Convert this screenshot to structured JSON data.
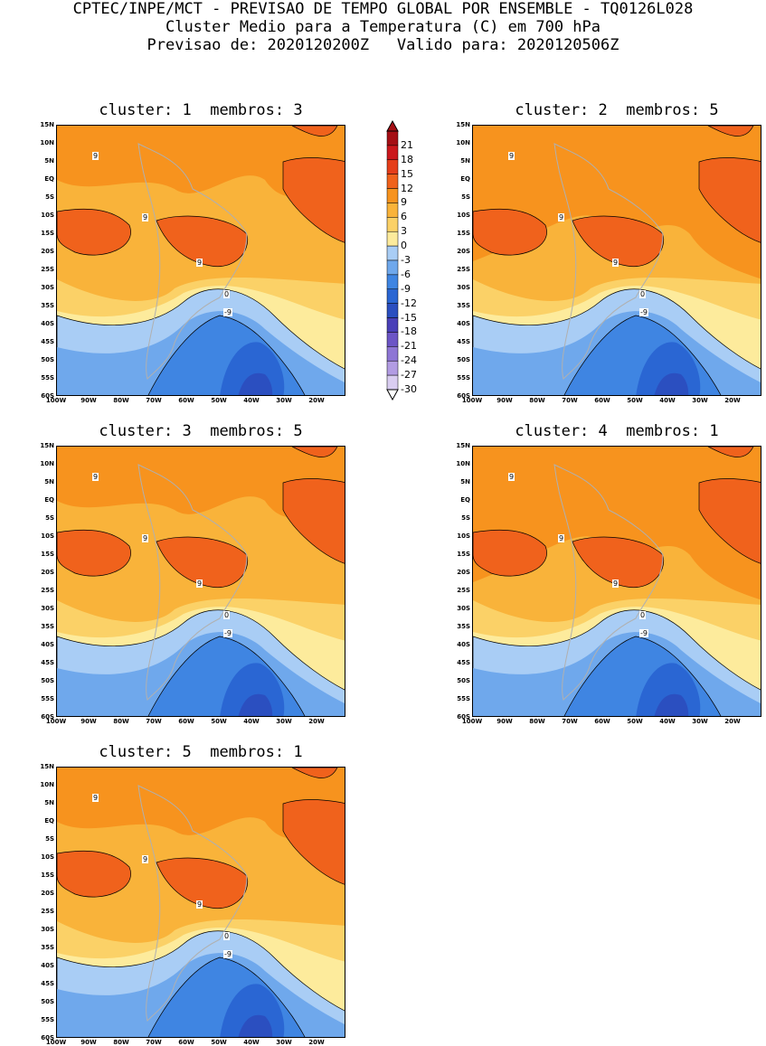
{
  "header": {
    "line1": "CPTEC/INPE/MCT - PREVISAO DE TEMPO GLOBAL POR ENSEMBLE - TQ0126L028",
    "line2": "Cluster Medio para a Temperatura (C) em 700 hPa",
    "line3": "Previsao de: 2020120200Z   Valido para: 2020120506Z"
  },
  "panels": [
    {
      "title": "cluster: 1  membros: 3"
    },
    {
      "title": "cluster: 2  membros: 5"
    },
    {
      "title": "cluster: 3  membros: 5"
    },
    {
      "title": "cluster: 4  membros: 1"
    },
    {
      "title": "cluster: 5  membros: 1"
    }
  ],
  "lat_labels": [
    "15N",
    "10N",
    "5N",
    "EQ",
    "5S",
    "10S",
    "15S",
    "20S",
    "25S",
    "30S",
    "35S",
    "40S",
    "45S",
    "50S",
    "55S",
    "60S"
  ],
  "lon_labels": [
    "100W",
    "90W",
    "80W",
    "70W",
    "60W",
    "50W",
    "40W",
    "30W",
    "20W"
  ],
  "colorbar": {
    "labels": [
      "21",
      "18",
      "15",
      "12",
      "9",
      "6",
      "3",
      "0",
      "-3",
      "-6",
      "-9",
      "-12",
      "-15",
      "-18",
      "-21",
      "-24",
      "-27",
      "-30"
    ],
    "colors": [
      "#a50f15",
      "#cb181d",
      "#e53e1a",
      "#f0621c",
      "#f7931e",
      "#f9b33a",
      "#fbd167",
      "#fdeb9c",
      "#a9cdf5",
      "#6fa8ec",
      "#3f85e2",
      "#2a66d3",
      "#2b4fc0",
      "#4a40b8",
      "#6c55c6",
      "#8e76d5",
      "#b29ce3",
      "#d9cdf1"
    ]
  },
  "contour_labels": {
    "nine": "9",
    "zero": "0",
    "minus_nine": "-9"
  }
}
